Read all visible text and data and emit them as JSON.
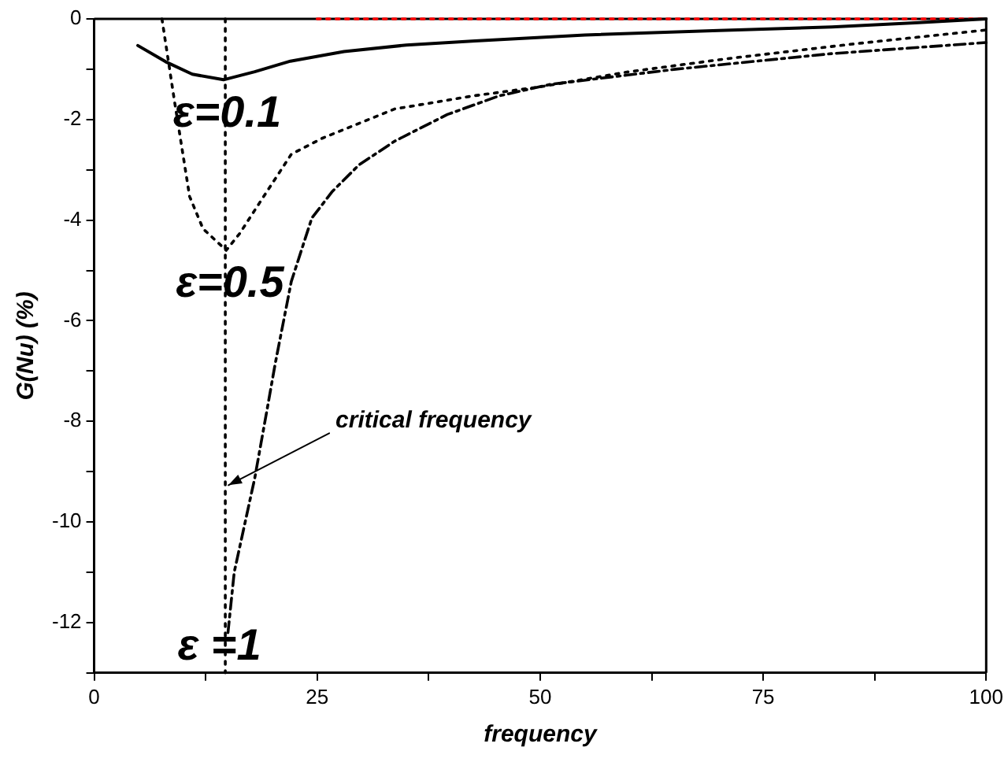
{
  "chart_data": {
    "type": "line",
    "xlabel": "frequency",
    "ylabel": "G(Nu) (%)",
    "xlim": [
      0,
      100
    ],
    "ylim": [
      -13,
      0
    ],
    "xticks": [
      0,
      {
        "value": 12.5,
        "label": null
      },
      25,
      {
        "value": 37.5,
        "label": null
      },
      50,
      {
        "value": 62.5,
        "label": null
      },
      75,
      {
        "value": 87.5,
        "label": null
      },
      100
    ],
    "yticks": [
      0,
      {
        "value": -1,
        "label": null
      },
      -2,
      {
        "value": -3,
        "label": null
      },
      -4,
      {
        "value": -5,
        "label": null
      },
      -6,
      {
        "value": -7,
        "label": null
      },
      -8,
      {
        "value": -9,
        "label": null
      },
      -10,
      {
        "value": -11,
        "label": null
      },
      -12,
      {
        "value": -13,
        "label": null
      }
    ],
    "grid": false,
    "legend": false,
    "marker": "none",
    "series": [
      {
        "color": "#000000",
        "line_style": "solid",
        "x": [
          4.9,
          8,
          11,
          14.5,
          18,
          22,
          28,
          35,
          42.7,
          55,
          70,
          82.7,
          92,
          100
        ],
        "values": [
          -0.53,
          -0.85,
          -1.1,
          -1.21,
          -1.05,
          -0.84,
          -0.65,
          -0.52,
          -0.44,
          -0.32,
          -0.23,
          -0.16,
          -0.08,
          0
        ]
      },
      {
        "color": "#000000",
        "line_style": "dotted",
        "x": [
          7.6,
          9.0,
          10.7,
          12.2,
          14.8,
          16.3,
          18.6,
          22.1,
          25.6,
          33.7,
          42.5,
          50,
          60,
          71,
          85,
          100
        ],
        "values": [
          0,
          -1.63,
          -3.53,
          -4.17,
          -4.6,
          -4.27,
          -3.64,
          -2.69,
          -2.37,
          -1.79,
          -1.53,
          -1.35,
          -1.05,
          -0.79,
          -0.5,
          -0.22
        ]
      },
      {
        "color": "#000000",
        "line_style": "dashed",
        "x": [
          15.0,
          15.7,
          18.0,
          19.5,
          20.3,
          22.1,
          24.4,
          26.7,
          29.7,
          33.7,
          39.6,
          45.4,
          51.2,
          65.2,
          82.7,
          100
        ],
        "values": [
          -12.2,
          -11.0,
          -9.13,
          -7.65,
          -6.85,
          -5.22,
          -3.96,
          -3.43,
          -2.9,
          -2.43,
          -1.9,
          -1.53,
          -1.3,
          -1.0,
          -0.69,
          -0.47
        ]
      },
      {
        "color": "#ff0000",
        "line_style": "dotted",
        "x": [
          25,
          100
        ],
        "values": [
          0,
          0
        ]
      }
    ],
    "ref_lines": [
      {
        "axis": "x",
        "value": 14.7,
        "color": "#000000",
        "line_style": "dotted"
      }
    ],
    "annotations": [
      {
        "text": "ε=0.1",
        "x": 14.5,
        "y": -1.21
      },
      {
        "text": "ε=0.5",
        "x": 14.8,
        "y": -4.6
      },
      {
        "text": "ε =1",
        "x": 15.0,
        "y": -12.2
      },
      {
        "text": "critical frequency",
        "x": 14.7,
        "y": -9.3
      }
    ]
  }
}
